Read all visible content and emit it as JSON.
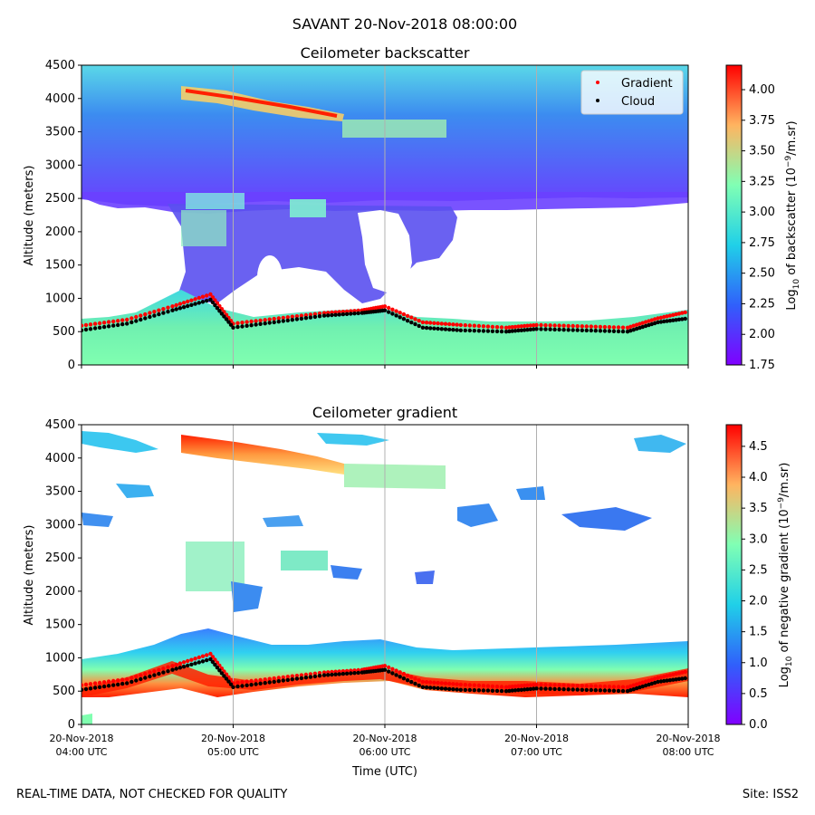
{
  "figure": {
    "suptitle": "SAVANT 20-Nov-2018 08:00:00",
    "footer_left": "REAL-TIME DATA, NOT CHECKED FOR QUALITY",
    "footer_right": "Site: ISS2"
  },
  "chart_data": [
    {
      "type": "heatmap",
      "title": "Ceilometer backscatter",
      "xlabel": "",
      "ylabel": "Altitude (meters)",
      "xlim_hours": [
        4,
        8
      ],
      "ylim": [
        0,
        4500
      ],
      "yticks": [
        0,
        500,
        1000,
        1500,
        2000,
        2500,
        3000,
        3500,
        4000,
        4500
      ],
      "grid": "vertical lines at hourly ticks",
      "colormap": "rainbow",
      "colorbar": {
        "label_prefix": "Log",
        "label_sub": "10",
        "label_mid": " of backscatter (10",
        "label_sup": "−9",
        "label_end": "/m.sr)",
        "range": [
          1.75,
          4.2
        ],
        "ticks": [
          "1.75",
          "2.00",
          "2.25",
          "2.50",
          "2.75",
          "3.00",
          "3.25",
          "3.50",
          "3.75",
          "4.00"
        ]
      },
      "legend": {
        "placement": "upper right",
        "entries": [
          {
            "label": "Gradient",
            "color": "#ff0000"
          },
          {
            "label": "Cloud",
            "color": "#000000"
          }
        ]
      },
      "series": [
        {
          "name": "Gradient",
          "marker_color": "#ff0000",
          "x_hours": [
            4.0,
            4.3,
            4.6,
            4.85,
            5.0,
            5.3,
            5.6,
            5.85,
            6.0,
            6.25,
            6.5,
            6.8,
            7.0,
            7.3,
            7.6,
            7.8,
            8.0
          ],
          "y_m": [
            590,
            680,
            880,
            1060,
            620,
            700,
            780,
            820,
            880,
            640,
            600,
            560,
            600,
            580,
            560,
            700,
            800
          ]
        },
        {
          "name": "Cloud",
          "marker_color": "#000000",
          "x_hours": [
            4.0,
            4.3,
            4.6,
            4.85,
            5.0,
            5.3,
            5.6,
            5.85,
            6.0,
            6.25,
            6.5,
            6.8,
            7.0,
            7.3,
            7.6,
            7.8,
            8.0
          ],
          "y_m": [
            520,
            620,
            820,
            980,
            560,
            650,
            740,
            780,
            820,
            560,
            520,
            500,
            540,
            520,
            500,
            640,
            700
          ]
        }
      ]
    },
    {
      "type": "heatmap",
      "title": "Ceilometer gradient",
      "xlabel": "Time (UTC)",
      "ylabel": "Altitude (meters)",
      "xlim_hours": [
        4,
        8
      ],
      "ylim": [
        0,
        4500
      ],
      "yticks": [
        0,
        500,
        1000,
        1500,
        2000,
        2500,
        3000,
        3500,
        4000,
        4500
      ],
      "xticks": [
        {
          "l1": "20-Nov-2018",
          "l2": "04:00 UTC"
        },
        {
          "l1": "20-Nov-2018",
          "l2": "05:00 UTC"
        },
        {
          "l1": "20-Nov-2018",
          "l2": "06:00 UTC"
        },
        {
          "l1": "20-Nov-2018",
          "l2": "07:00 UTC"
        },
        {
          "l1": "20-Nov-2018",
          "l2": "08:00 UTC"
        }
      ],
      "grid": "vertical lines at hourly ticks",
      "colormap": "rainbow",
      "colorbar": {
        "label_prefix": "Log",
        "label_sub": "10",
        "label_mid": " of negative gradient (10",
        "label_sup": "−9",
        "label_end": "/m.sr)",
        "range": [
          0,
          4.85
        ],
        "ticks": [
          "0.0",
          "0.5",
          "1.0",
          "1.5",
          "2.0",
          "2.5",
          "3.0",
          "3.5",
          "4.0",
          "4.5"
        ]
      }
    }
  ]
}
